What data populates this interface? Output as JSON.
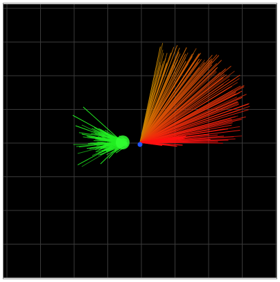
{
  "viewer": {
    "background_color": "#000000",
    "grid_color": "#3a3a3a",
    "frame_color": "#8a8a8a",
    "origin_marker_color": "#2255ff",
    "grid": {
      "visible": true,
      "divisions": 8
    }
  },
  "ray_fans": [
    {
      "name": "green-cluster",
      "color": "#22ee22",
      "center_color": "#33ff33",
      "description_visible": false
    },
    {
      "name": "orange-to-red-fan",
      "color_start": "#c98a00",
      "color_end": "#ff1010",
      "description_visible": false
    }
  ]
}
